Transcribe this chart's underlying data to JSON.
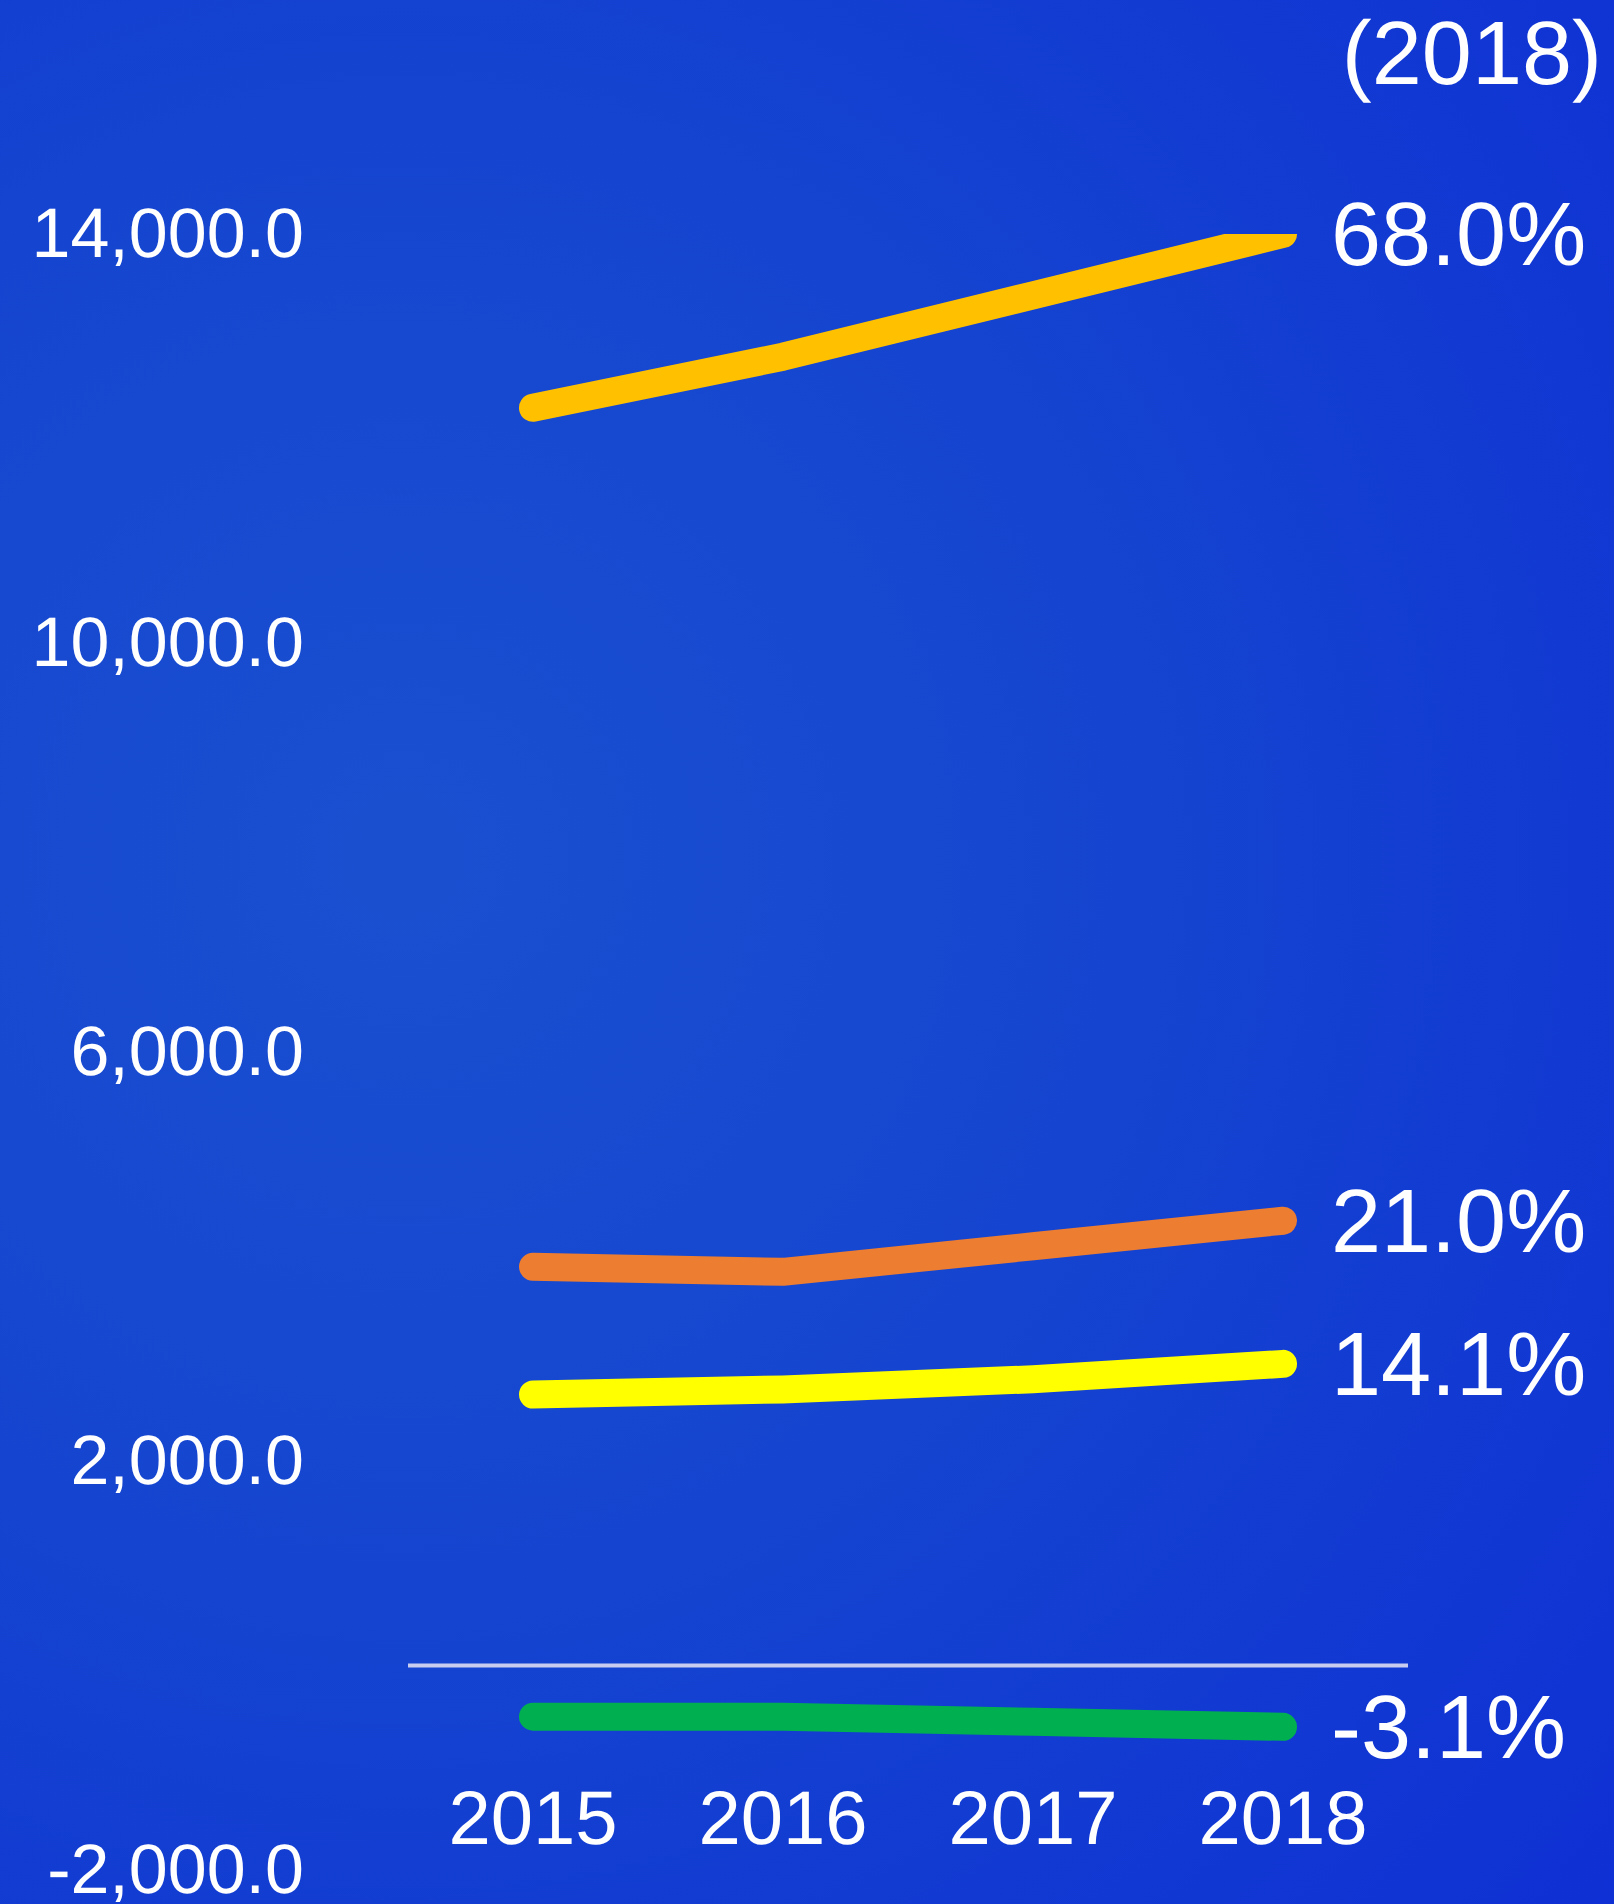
{
  "chart_data": {
    "type": "line",
    "categories": [
      "2015",
      "2016",
      "2017",
      "2018"
    ],
    "series": [
      {
        "color": "#ffc000",
        "values": [
          12300,
          12800,
          13400,
          14000
        ]
      },
      {
        "color": "#ed7d31",
        "values": [
          3900,
          3850,
          4100,
          4350
        ]
      },
      {
        "color": "#ffff00",
        "values": [
          2650,
          2700,
          2800,
          2950
        ]
      },
      {
        "color": "#00b050",
        "values": [
          -500,
          -500,
          -550,
          -600
        ]
      }
    ],
    "ylim": [
      -2000,
      14000
    ],
    "yticks": [
      {
        "value": -2000,
        "label": "-2,000.0"
      },
      {
        "value": 2000,
        "label": "2,000.0"
      },
      {
        "value": 6000,
        "label": "6,000.0"
      },
      {
        "value": 10000,
        "label": "10,000.0"
      },
      {
        "value": 14000,
        "label": "14,000.0"
      }
    ],
    "ref_lines": [
      {
        "axis": "y",
        "value": 0,
        "color": "#c8cdf0"
      }
    ],
    "annotations": [
      "(2018)",
      {
        "text": "68.0%",
        "x": "2018",
        "y": 14000
      },
      {
        "text": "21.0%",
        "x": "2018",
        "y": 4350
      },
      {
        "text": "14.1%",
        "x": "2018",
        "y": 2950
      },
      {
        "text": "-3.1%",
        "x": "2018",
        "y": -600
      }
    ],
    "line_style": "solid"
  }
}
